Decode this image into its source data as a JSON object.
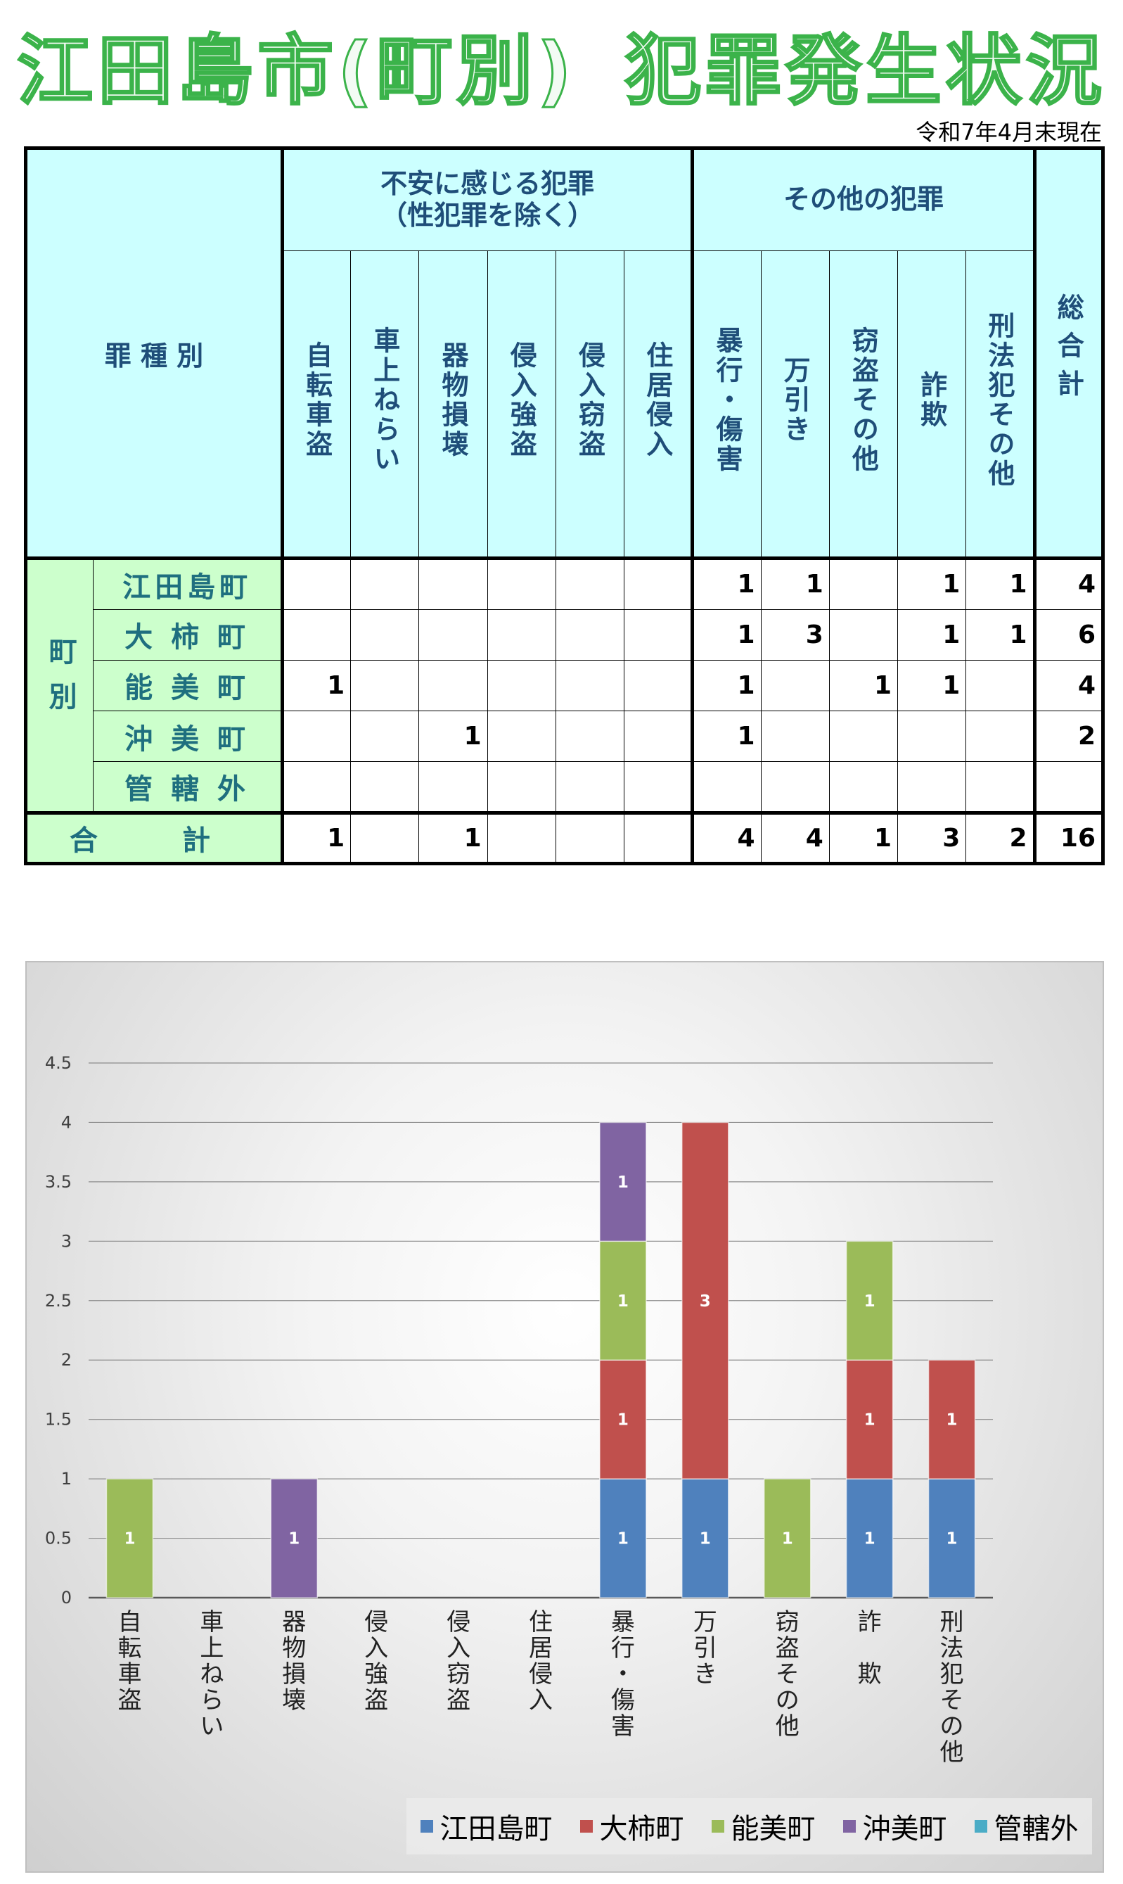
{
  "title": "江田島市(町別)　犯罪発生状況",
  "title_left": "江田島市(町別)",
  "title_right": "犯罪発生状況",
  "date": "令和7年4月末現在",
  "table": {
    "corner": "罪 種 別",
    "group1": "不安に感じる犯罪\n（性犯罪を除く）",
    "group2": "その他の犯罪",
    "total_header": "総合計",
    "columns": [
      "自転車盗",
      "車上ねらい",
      "器物損壊",
      "侵入強盗",
      "侵入窃盗",
      "住居侵入",
      "暴行・傷害",
      "万引き",
      "窃盗その他",
      "詐欺",
      "刑法犯その他"
    ],
    "row_group": "町別",
    "rows": [
      {
        "name": "江田島町",
        "values": [
          "",
          "",
          "",
          "",
          "",
          "",
          "1",
          "1",
          "",
          "1",
          "1"
        ],
        "total": "4"
      },
      {
        "name": "大 柿 町",
        "values": [
          "",
          "",
          "",
          "",
          "",
          "",
          "1",
          "3",
          "",
          "1",
          "1"
        ],
        "total": "6"
      },
      {
        "name": "能 美 町",
        "values": [
          "1",
          "",
          "",
          "",
          "",
          "",
          "1",
          "",
          "1",
          "1",
          ""
        ],
        "total": "4"
      },
      {
        "name": "沖 美 町",
        "values": [
          "",
          "",
          "1",
          "",
          "",
          "",
          "1",
          "",
          "",
          "",
          ""
        ],
        "total": "2"
      },
      {
        "name": "管 轄 外",
        "values": [
          "",
          "",
          "",
          "",
          "",
          "",
          "",
          "",
          "",
          "",
          ""
        ],
        "total": ""
      }
    ],
    "sum_label": "合　計",
    "sum_values": [
      "1",
      "",
      "1",
      "",
      "",
      "",
      "4",
      "4",
      "1",
      "3",
      "2"
    ],
    "sum_total": "16"
  },
  "chart_data": {
    "type": "bar",
    "stacked": true,
    "categories": [
      "自転車盗",
      "車上ねらい",
      "器物損壊",
      "侵入強盗",
      "侵入窃盗",
      "住居侵入",
      "暴行・傷害",
      "万引き",
      "窃盗その他",
      "詐欺",
      "刑法犯その他"
    ],
    "category_labels": [
      "自転車盗",
      "車上ねらい",
      "器物損壊",
      "侵入強盗",
      "侵入窃盗",
      "住居侵入",
      "暴行・傷害",
      "万引き",
      "窃盗その他",
      "詐　欺",
      "刑法犯その他"
    ],
    "series": [
      {
        "name": "江田島町",
        "color": "#4f81bd",
        "values": [
          0,
          0,
          0,
          0,
          0,
          0,
          1,
          1,
          0,
          1,
          1
        ]
      },
      {
        "name": "大柿町",
        "color": "#c0504d",
        "values": [
          0,
          0,
          0,
          0,
          0,
          0,
          1,
          3,
          0,
          1,
          1
        ]
      },
      {
        "name": "能美町",
        "color": "#9bbb59",
        "values": [
          1,
          0,
          0,
          0,
          0,
          0,
          1,
          0,
          1,
          1,
          0
        ]
      },
      {
        "name": "沖美町",
        "color": "#8064a2",
        "values": [
          0,
          0,
          1,
          0,
          0,
          0,
          1,
          0,
          0,
          0,
          0
        ]
      },
      {
        "name": "管轄外",
        "color": "#4bacc6",
        "values": [
          0,
          0,
          0,
          0,
          0,
          0,
          0,
          0,
          0,
          0,
          0
        ]
      }
    ],
    "yticks": [
      "0",
      "0.5",
      "1",
      "1.5",
      "2",
      "2.5",
      "3",
      "3.5",
      "4",
      "4.5"
    ],
    "ylim": [
      0,
      4.5
    ],
    "grid": true,
    "legend": "bottom-right"
  }
}
